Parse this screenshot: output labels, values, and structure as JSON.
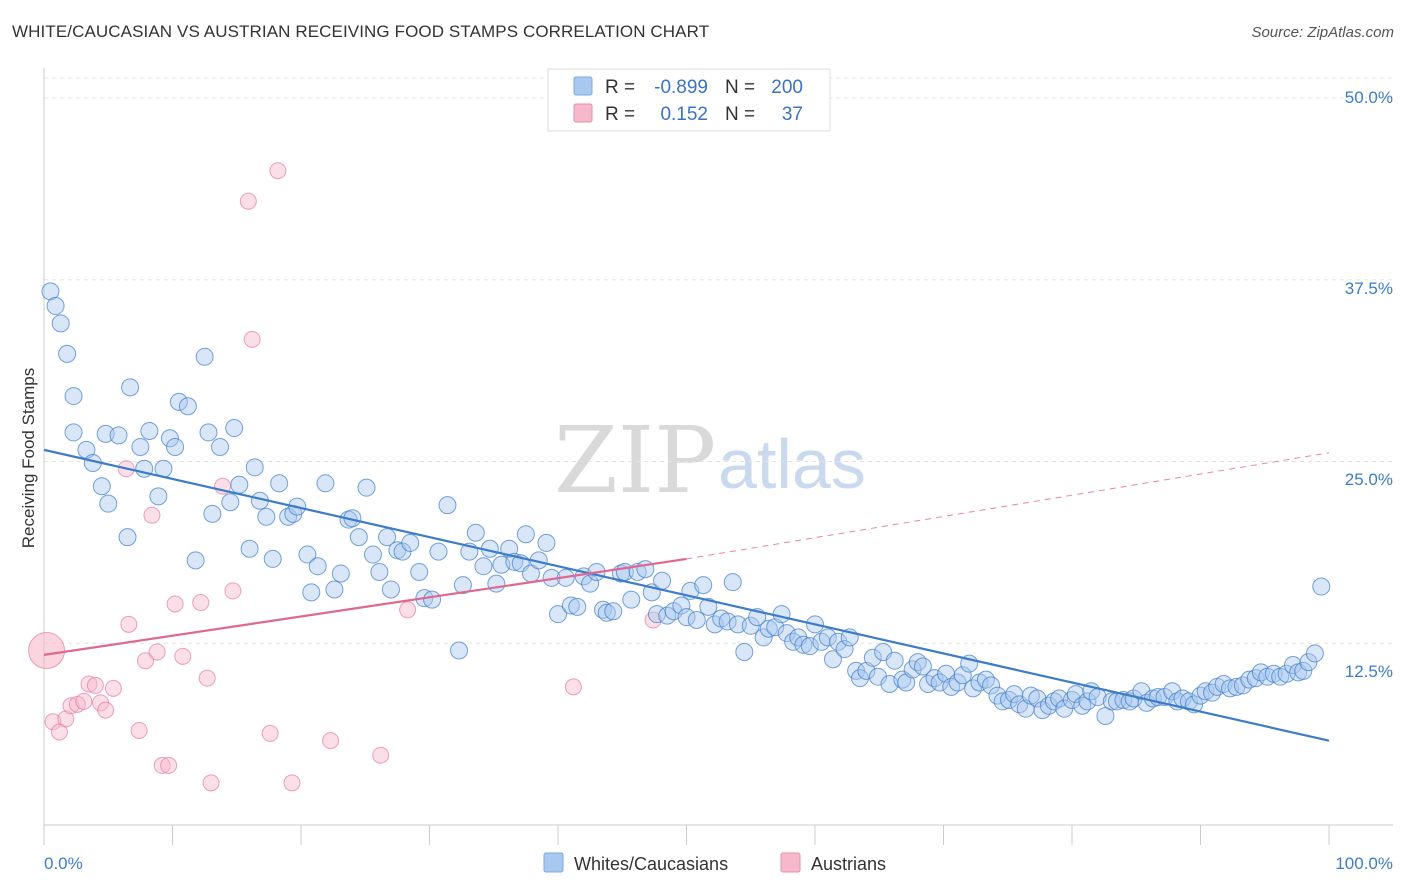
{
  "title": "WHITE/CAUCASIAN VS AUSTRIAN RECEIVING FOOD STAMPS CORRELATION CHART",
  "source": "Source: ZipAtlas.com",
  "watermark": {
    "zip": "ZIP",
    "atlas": "atlas"
  },
  "legend": {
    "rows": [
      {
        "r_label": "R =",
        "r_value": "-0.899",
        "n_label": "N =",
        "n_value": "200"
      },
      {
        "r_label": "R =",
        "r_value": "0.152",
        "n_label": "N =",
        "n_value": "37"
      }
    ]
  },
  "bottom_legend": {
    "blue": "Whites/Caucasians",
    "pink": "Austrians"
  },
  "colors": {
    "blue": "#3d7cc9",
    "blue_fill": "#a8c8ef",
    "pink": "#e0678f",
    "pink_fill": "#f6b9cc"
  },
  "chart_data": {
    "type": "scatter",
    "title": "WHITE/CAUCASIAN VS AUSTRIAN RECEIVING FOOD STAMPS CORRELATION CHART",
    "xlabel": "",
    "ylabel": "Receiving Food Stamps",
    "xlim": [
      0,
      100
    ],
    "ylim": [
      0,
      50
    ],
    "x_tick_labels": [
      "0.0%",
      "100.0%"
    ],
    "y_tick_labels": [
      "12.5%",
      "25.0%",
      "37.5%",
      "50.0%"
    ],
    "y_ticks": [
      12.5,
      25.0,
      37.5,
      50.0
    ],
    "x_ticks": [
      0,
      10,
      20,
      30,
      40,
      50,
      60,
      70,
      80,
      90,
      100
    ],
    "series": [
      {
        "name": "Whites/Caucasians",
        "trend": {
          "x": [
            0,
            100
          ],
          "y": [
            25.8,
            5.8
          ]
        },
        "points": [
          [
            0.5,
            36.7
          ],
          [
            0.9,
            35.7
          ],
          [
            1.3,
            34.5
          ],
          [
            1.8,
            32.4
          ],
          [
            2.3,
            29.5
          ],
          [
            2.3,
            27.0
          ],
          [
            3.3,
            25.8
          ],
          [
            3.8,
            24.9
          ],
          [
            4.5,
            23.3
          ],
          [
            5.0,
            22.1
          ],
          [
            4.8,
            26.9
          ],
          [
            5.8,
            26.8
          ],
          [
            6.5,
            19.8
          ],
          [
            6.7,
            30.1
          ],
          [
            7.5,
            26.0
          ],
          [
            7.8,
            24.5
          ],
          [
            8.2,
            27.1
          ],
          [
            8.9,
            22.6
          ],
          [
            9.3,
            24.5
          ],
          [
            9.8,
            26.6
          ],
          [
            10.2,
            26.0
          ],
          [
            10.5,
            29.1
          ],
          [
            11.2,
            28.8
          ],
          [
            11.8,
            18.2
          ],
          [
            12.5,
            32.2
          ],
          [
            12.8,
            27.0
          ],
          [
            13.1,
            21.4
          ],
          [
            13.7,
            26.0
          ],
          [
            14.5,
            22.2
          ],
          [
            14.8,
            27.3
          ],
          [
            15.2,
            23.4
          ],
          [
            16.0,
            19.0
          ],
          [
            16.4,
            24.6
          ],
          [
            16.8,
            22.3
          ],
          [
            17.3,
            21.2
          ],
          [
            17.8,
            18.3
          ],
          [
            18.3,
            23.5
          ],
          [
            19.0,
            21.2
          ],
          [
            19.4,
            21.4
          ],
          [
            19.7,
            21.9
          ],
          [
            20.5,
            18.6
          ],
          [
            20.8,
            16.0
          ],
          [
            21.3,
            17.8
          ],
          [
            21.9,
            23.5
          ],
          [
            22.6,
            16.2
          ],
          [
            23.1,
            17.3
          ],
          [
            23.7,
            21.0
          ],
          [
            24.0,
            21.1
          ],
          [
            24.5,
            19.8
          ],
          [
            25.1,
            23.2
          ],
          [
            25.6,
            18.6
          ],
          [
            26.1,
            17.4
          ],
          [
            26.7,
            19.8
          ],
          [
            27.0,
            16.2
          ],
          [
            27.5,
            18.9
          ],
          [
            27.9,
            18.8
          ],
          [
            28.5,
            19.4
          ],
          [
            29.2,
            17.4
          ],
          [
            29.6,
            15.6
          ],
          [
            30.2,
            15.5
          ],
          [
            30.7,
            18.8
          ],
          [
            31.4,
            22.0
          ],
          [
            32.3,
            12.0
          ],
          [
            32.6,
            16.5
          ],
          [
            33.1,
            18.8
          ],
          [
            33.6,
            20.1
          ],
          [
            34.2,
            17.8
          ],
          [
            34.7,
            19.0
          ],
          [
            35.2,
            16.6
          ],
          [
            35.6,
            17.9
          ],
          [
            36.2,
            19.0
          ],
          [
            36.6,
            18.1
          ],
          [
            37.1,
            18.0
          ],
          [
            37.5,
            20.0
          ],
          [
            37.9,
            17.3
          ],
          [
            38.5,
            18.2
          ],
          [
            39.1,
            19.4
          ],
          [
            39.5,
            17.0
          ],
          [
            40.0,
            14.5
          ],
          [
            40.6,
            17.0
          ],
          [
            41.0,
            15.1
          ],
          [
            41.5,
            15.0
          ],
          [
            42.0,
            17.1
          ],
          [
            42.5,
            16.6
          ],
          [
            43.0,
            17.4
          ],
          [
            43.5,
            14.8
          ],
          [
            43.8,
            14.6
          ],
          [
            44.3,
            14.7
          ],
          [
            44.9,
            17.3
          ],
          [
            45.2,
            17.4
          ],
          [
            45.7,
            15.5
          ],
          [
            46.2,
            17.4
          ],
          [
            46.8,
            17.6
          ],
          [
            47.3,
            16.0
          ],
          [
            47.7,
            14.5
          ],
          [
            48.1,
            16.8
          ],
          [
            48.5,
            14.4
          ],
          [
            49.0,
            14.7
          ],
          [
            49.6,
            15.1
          ],
          [
            50.0,
            14.3
          ],
          [
            50.3,
            16.1
          ],
          [
            50.8,
            14.1
          ],
          [
            51.3,
            16.5
          ],
          [
            51.7,
            15.0
          ],
          [
            52.2,
            13.8
          ],
          [
            52.7,
            14.2
          ],
          [
            53.2,
            14.0
          ],
          [
            53.6,
            16.7
          ],
          [
            54.0,
            13.8
          ],
          [
            54.5,
            11.9
          ],
          [
            55.0,
            13.7
          ],
          [
            55.5,
            14.3
          ],
          [
            56.0,
            12.9
          ],
          [
            56.4,
            13.5
          ],
          [
            56.9,
            13.6
          ],
          [
            57.4,
            14.5
          ],
          [
            57.8,
            13.2
          ],
          [
            58.3,
            12.6
          ],
          [
            58.7,
            12.9
          ],
          [
            59.1,
            12.4
          ],
          [
            59.6,
            12.3
          ],
          [
            60.0,
            13.8
          ],
          [
            60.5,
            12.6
          ],
          [
            61.0,
            12.9
          ],
          [
            61.4,
            11.4
          ],
          [
            61.8,
            12.6
          ],
          [
            62.3,
            12.1
          ],
          [
            62.7,
            12.9
          ],
          [
            63.2,
            10.6
          ],
          [
            63.5,
            10.1
          ],
          [
            64.0,
            10.6
          ],
          [
            64.5,
            11.5
          ],
          [
            64.9,
            10.2
          ],
          [
            65.3,
            11.9
          ],
          [
            65.8,
            9.7
          ],
          [
            66.2,
            11.3
          ],
          [
            66.8,
            10.0
          ],
          [
            67.1,
            9.8
          ],
          [
            67.6,
            10.7
          ],
          [
            68.0,
            11.2
          ],
          [
            68.4,
            10.9
          ],
          [
            68.8,
            9.7
          ],
          [
            69.3,
            10.1
          ],
          [
            69.7,
            9.8
          ],
          [
            70.2,
            10.4
          ],
          [
            70.6,
            9.5
          ],
          [
            71.1,
            9.8
          ],
          [
            71.5,
            10.3
          ],
          [
            72.0,
            11.1
          ],
          [
            72.3,
            9.4
          ],
          [
            72.8,
            9.8
          ],
          [
            73.3,
            10.0
          ],
          [
            73.7,
            9.6
          ],
          [
            74.2,
            8.9
          ],
          [
            74.6,
            8.5
          ],
          [
            75.1,
            8.6
          ],
          [
            75.5,
            9.0
          ],
          [
            75.9,
            8.3
          ],
          [
            76.4,
            8.0
          ],
          [
            76.8,
            8.9
          ],
          [
            77.3,
            8.7
          ],
          [
            77.7,
            7.9
          ],
          [
            78.2,
            8.2
          ],
          [
            78.6,
            8.5
          ],
          [
            79.0,
            8.7
          ],
          [
            79.4,
            8.0
          ],
          [
            80.0,
            8.6
          ],
          [
            80.3,
            9.0
          ],
          [
            80.8,
            8.2
          ],
          [
            81.2,
            8.5
          ],
          [
            81.5,
            9.2
          ],
          [
            82.0,
            8.8
          ],
          [
            82.6,
            7.5
          ],
          [
            83.1,
            8.5
          ],
          [
            83.5,
            8.5
          ],
          [
            84.0,
            8.6
          ],
          [
            84.5,
            8.5
          ],
          [
            84.8,
            8.7
          ],
          [
            85.4,
            9.2
          ],
          [
            85.8,
            8.4
          ],
          [
            86.3,
            8.7
          ],
          [
            86.7,
            8.8
          ],
          [
            87.2,
            8.8
          ],
          [
            87.8,
            9.2
          ],
          [
            88.2,
            8.5
          ],
          [
            88.6,
            8.7
          ],
          [
            89.1,
            8.5
          ],
          [
            89.5,
            8.3
          ],
          [
            90.0,
            8.9
          ],
          [
            90.4,
            9.2
          ],
          [
            90.9,
            9.1
          ],
          [
            91.3,
            9.5
          ],
          [
            91.8,
            9.7
          ],
          [
            92.3,
            9.4
          ],
          [
            92.8,
            9.5
          ],
          [
            93.3,
            9.6
          ],
          [
            93.8,
            10.0
          ],
          [
            94.3,
            10.1
          ],
          [
            94.7,
            10.5
          ],
          [
            95.2,
            10.2
          ],
          [
            95.7,
            10.4
          ],
          [
            96.2,
            10.2
          ],
          [
            96.7,
            10.4
          ],
          [
            97.2,
            11.0
          ],
          [
            97.6,
            10.5
          ],
          [
            98.0,
            10.6
          ],
          [
            98.4,
            11.2
          ],
          [
            98.9,
            11.8
          ],
          [
            99.4,
            16.4
          ]
        ]
      },
      {
        "name": "Austrians",
        "trend": {
          "x": [
            0,
            50
          ],
          "y": [
            11.7,
            18.3
          ]
        },
        "trend_extension": {
          "x": [
            50,
            100
          ],
          "y": [
            18.3,
            25.6
          ]
        },
        "points": [
          [
            0.2,
            12.0
          ],
          [
            0.7,
            7.1
          ],
          [
            1.2,
            6.4
          ],
          [
            1.7,
            7.3
          ],
          [
            2.1,
            8.2
          ],
          [
            2.6,
            8.3
          ],
          [
            3.1,
            8.5
          ],
          [
            3.5,
            9.7
          ],
          [
            4.0,
            9.6
          ],
          [
            4.4,
            8.4
          ],
          [
            4.8,
            7.9
          ],
          [
            5.4,
            9.4
          ],
          [
            6.4,
            24.5
          ],
          [
            6.6,
            13.8
          ],
          [
            7.4,
            6.5
          ],
          [
            7.9,
            11.3
          ],
          [
            8.4,
            21.3
          ],
          [
            8.8,
            11.9
          ],
          [
            9.2,
            4.1
          ],
          [
            9.7,
            4.1
          ],
          [
            10.2,
            15.2
          ],
          [
            10.8,
            11.6
          ],
          [
            12.2,
            15.3
          ],
          [
            12.7,
            10.1
          ],
          [
            13.0,
            2.9
          ],
          [
            13.9,
            23.3
          ],
          [
            14.7,
            16.1
          ],
          [
            15.9,
            42.9
          ],
          [
            16.2,
            33.4
          ],
          [
            17.6,
            6.3
          ],
          [
            18.2,
            45.0
          ],
          [
            19.3,
            2.9
          ],
          [
            22.3,
            5.8
          ],
          [
            26.2,
            4.8
          ],
          [
            28.3,
            14.8
          ],
          [
            41.2,
            9.5
          ],
          [
            47.4,
            14.1
          ]
        ]
      }
    ]
  }
}
